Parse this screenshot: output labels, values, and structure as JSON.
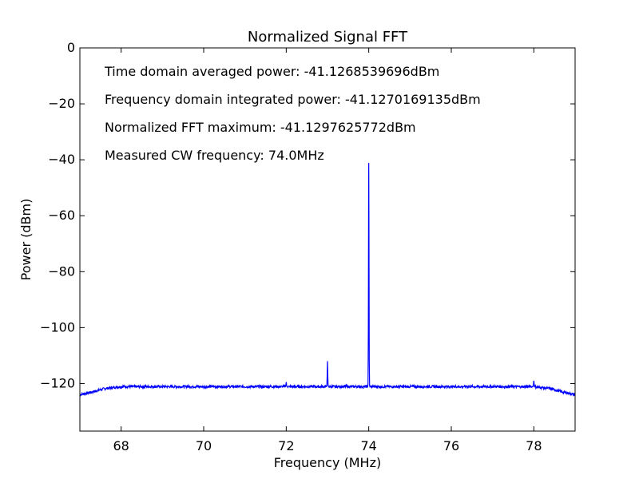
{
  "chart_data": {
    "type": "line",
    "title": "Normalized Signal FFT",
    "xlabel": "Frequency (MHz)",
    "ylabel": "Power (dBm)",
    "xlim": [
      67,
      79
    ],
    "ylim": [
      -137,
      0
    ],
    "xticks": [
      68,
      70,
      72,
      74,
      76,
      78
    ],
    "yticks": [
      0,
      -20,
      -40,
      -60,
      -80,
      -100,
      -120
    ],
    "xtick_labels": [
      "68",
      "70",
      "72",
      "74",
      "76",
      "78"
    ],
    "ytick_labels": [
      "0",
      "−20",
      "−40",
      "−60",
      "−80",
      "−100",
      "−120"
    ],
    "grid": false,
    "line_color": "#0000ff",
    "annotations": [
      "Time domain averaged power: -41.1268539696dBm",
      "Frequency domain integrated power: -41.1270169135dBm",
      "Normalized FFT maximum: -41.1297625772dBm",
      "Measured CW frequency: 74.0MHz"
    ],
    "series": [
      {
        "noise_floor_dbm": -121,
        "edge_rolloff": [
          {
            "x": 67.0,
            "y": -124.0
          },
          {
            "x": 67.3,
            "y": -123.0
          },
          {
            "x": 67.6,
            "y": -121.8
          },
          {
            "x": 68.0,
            "y": -121.1
          },
          {
            "x": 78.0,
            "y": -121.1
          },
          {
            "x": 78.4,
            "y": -121.8
          },
          {
            "x": 78.7,
            "y": -123.0
          },
          {
            "x": 79.0,
            "y": -124.0
          }
        ],
        "peaks": [
          {
            "x": 72.0,
            "y": -119.5
          },
          {
            "x": 73.0,
            "y": -112.0
          },
          {
            "x": 74.0,
            "y": -41.13
          },
          {
            "x": 78.0,
            "y": -119.0
          }
        ]
      }
    ]
  }
}
